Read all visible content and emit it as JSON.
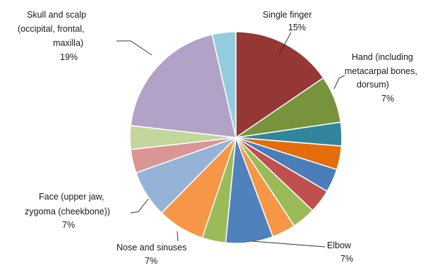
{
  "chart_data": {
    "type": "pie",
    "title": "",
    "start_angle_deg": 0,
    "direction": "clockwise",
    "slices": [
      {
        "label": "Single finger",
        "value": 15,
        "value_label": "15%",
        "color": "#953735"
      },
      {
        "label": "Hand (including metacarpal bones, dorsum)",
        "value": 7,
        "value_label": "7%",
        "color": "#77933c"
      },
      {
        "value": 3.5,
        "color": "#31859c"
      },
      {
        "value": 3.5,
        "color": "#e46c0a"
      },
      {
        "value": 3.5,
        "color": "#4a7ebb"
      },
      {
        "value": 3.5,
        "color": "#c0504d"
      },
      {
        "value": 3.5,
        "color": "#9bbb59"
      },
      {
        "value": 3.5,
        "color": "#f79646"
      },
      {
        "label": "Elbow",
        "value": 7,
        "value_label": "7%",
        "color": "#4f81bd"
      },
      {
        "value": 3.5,
        "color": "#9bbb59"
      },
      {
        "label": "Nose and sinuses",
        "value": 7,
        "value_label": "7%",
        "color": "#f79646"
      },
      {
        "label": "Face (upper jaw, zygoma (cheekbone))",
        "value": 7,
        "value_label": "7%",
        "color": "#95b3d7"
      },
      {
        "value": 3.5,
        "color": "#da9694"
      },
      {
        "value": 3.5,
        "color": "#c3d69b"
      },
      {
        "label": "Skull and scalp (occipital, frontal, maxilla)",
        "value": 19,
        "value_label": "19%",
        "color": "#b3a2c7"
      },
      {
        "value": 3.5,
        "color": "#93cddd"
      }
    ],
    "annotations": [
      {
        "id": "single-finger",
        "lines": [
          "Single finger",
          "15%"
        ]
      },
      {
        "id": "hand",
        "lines": [
          "Hand (including",
          "metacarpal bones,",
          "dorsum)",
          "7%"
        ]
      },
      {
        "id": "elbow",
        "lines": [
          "Elbow",
          "7%"
        ]
      },
      {
        "id": "nose",
        "lines": [
          "Nose and sinuses",
          "7%"
        ]
      },
      {
        "id": "face",
        "lines": [
          "Face (upper jaw,",
          "zygoma (cheekbone))",
          "7%"
        ]
      },
      {
        "id": "skull",
        "lines": [
          "Skull and scalp",
          "(occipital, frontal,",
          "maxilla)",
          "19%"
        ]
      }
    ]
  }
}
